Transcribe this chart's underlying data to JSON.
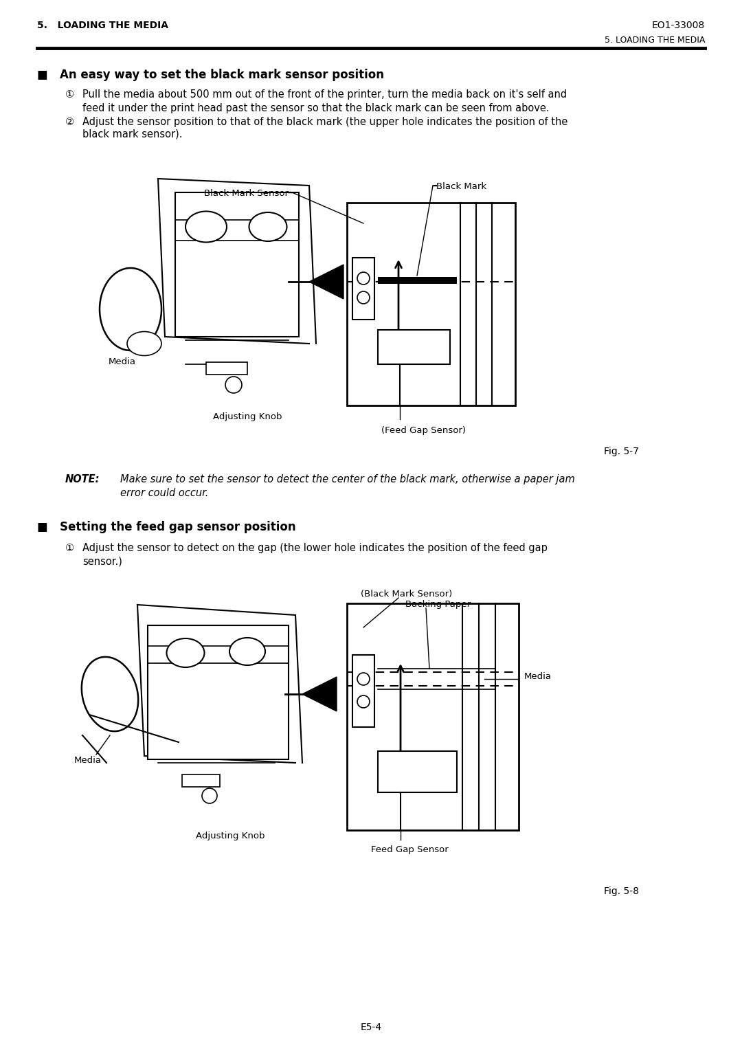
{
  "page_header_left": "5.   LOADING THE MEDIA",
  "page_header_right": "EO1-33008",
  "page_subheader_right": "5. LOADING THE MEDIA",
  "page_footer": "E5-4",
  "section1_title": "■   An easy way to set the black mark sensor position",
  "step1_num": "①",
  "step1_line1": "Pull the media about 500 mm out of the front of the printer, turn the media back on it's self and",
  "step1_line2": "feed it under the print head past the sensor so that the black mark can be seen from above.",
  "step2_num": "②",
  "step2_line1": "Adjust the sensor position to that of the black mark (the upper hole indicates the position of the",
  "step2_line2": "black mark sensor).",
  "fig1_label_bms": "Black Mark Sensor",
  "fig1_label_bm": "Black Mark",
  "fig1_label_media": "Media",
  "fig1_label_adj": "Adjusting Knob",
  "fig1_label_fgs": "(Feed Gap Sensor)",
  "fig1_caption": "Fig. 5-7",
  "note_label": "NOTE:",
  "note_line1": "Make sure to set the sensor to detect the center of the black mark, otherwise a paper jam",
  "note_line2": "error could occur.",
  "section2_title": "■   Setting the feed gap sensor position",
  "step3_num": "①",
  "step3_line1": "Adjust the sensor to detect on the gap (the lower hole indicates the position of the feed gap",
  "step3_line2": "sensor.)",
  "fig2_label_bms": "(Black Mark Sensor)",
  "fig2_label_bp": "Backing Paper",
  "fig2_label_media": "Media",
  "fig2_label_media_left": "Media",
  "fig2_label_adj": "Adjusting Knob",
  "fig2_label_fgs": "Feed Gap Sensor",
  "fig2_caption": "Fig. 5-8",
  "bg_color": "#ffffff",
  "text_color": "#000000"
}
